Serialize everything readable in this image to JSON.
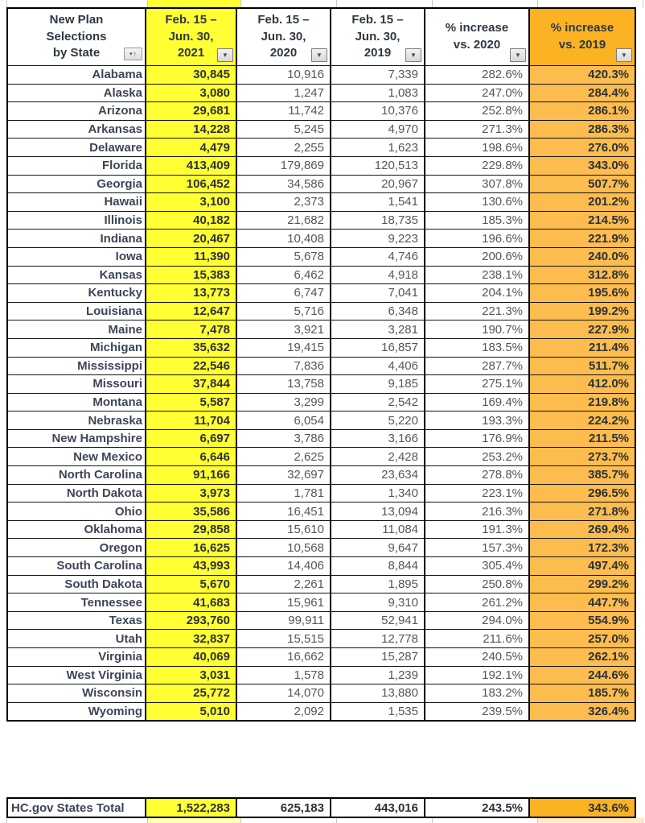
{
  "title": "New Plan Selections by State",
  "colors": {
    "highlight_yellow": "#FFFF33",
    "header_orange": "#FBB324",
    "cell_orange": "#FCBC4E",
    "grid_black": "#000000",
    "text_dark": "#2C313A"
  },
  "icons": {
    "filter_dropdown": "▼",
    "filter_small": "▾",
    "sort_ascending": "↑"
  },
  "table": {
    "header": {
      "state": "New Plan\nSelections\nby State",
      "col_2021": "Feb. 15 –\nJun. 30,\n2021",
      "col_2020": "Feb. 15 –\nJun. 30,\n2020",
      "col_2019": "Feb. 15 –\nJun. 30,\n2019",
      "pct_2020": "% increase\nvs. 2020",
      "pct_2019": "% increase\nvs. 2019"
    },
    "rows": [
      {
        "state": "Alabama",
        "v2021": "30,845",
        "v2020": "10,916",
        "v2019": "7,339",
        "pct_vs_2020": "282.6%",
        "pct_vs_2019": "420.3%"
      },
      {
        "state": "Alaska",
        "v2021": "3,080",
        "v2020": "1,247",
        "v2019": "1,083",
        "pct_vs_2020": "247.0%",
        "pct_vs_2019": "284.4%"
      },
      {
        "state": "Arizona",
        "v2021": "29,681",
        "v2020": "11,742",
        "v2019": "10,376",
        "pct_vs_2020": "252.8%",
        "pct_vs_2019": "286.1%"
      },
      {
        "state": "Arkansas",
        "v2021": "14,228",
        "v2020": "5,245",
        "v2019": "4,970",
        "pct_vs_2020": "271.3%",
        "pct_vs_2019": "286.3%"
      },
      {
        "state": "Delaware",
        "v2021": "4,479",
        "v2020": "2,255",
        "v2019": "1,623",
        "pct_vs_2020": "198.6%",
        "pct_vs_2019": "276.0%"
      },
      {
        "state": "Florida",
        "v2021": "413,409",
        "v2020": "179,869",
        "v2019": "120,513",
        "pct_vs_2020": "229.8%",
        "pct_vs_2019": "343.0%"
      },
      {
        "state": "Georgia",
        "v2021": "106,452",
        "v2020": "34,586",
        "v2019": "20,967",
        "pct_vs_2020": "307.8%",
        "pct_vs_2019": "507.7%"
      },
      {
        "state": "Hawaii",
        "v2021": "3,100",
        "v2020": "2,373",
        "v2019": "1,541",
        "pct_vs_2020": "130.6%",
        "pct_vs_2019": "201.2%"
      },
      {
        "state": "Illinois",
        "v2021": "40,182",
        "v2020": "21,682",
        "v2019": "18,735",
        "pct_vs_2020": "185.3%",
        "pct_vs_2019": "214.5%"
      },
      {
        "state": "Indiana",
        "v2021": "20,467",
        "v2020": "10,408",
        "v2019": "9,223",
        "pct_vs_2020": "196.6%",
        "pct_vs_2019": "221.9%"
      },
      {
        "state": "Iowa",
        "v2021": "11,390",
        "v2020": "5,678",
        "v2019": "4,746",
        "pct_vs_2020": "200.6%",
        "pct_vs_2019": "240.0%"
      },
      {
        "state": "Kansas",
        "v2021": "15,383",
        "v2020": "6,462",
        "v2019": "4,918",
        "pct_vs_2020": "238.1%",
        "pct_vs_2019": "312.8%"
      },
      {
        "state": "Kentucky",
        "v2021": "13,773",
        "v2020": "6,747",
        "v2019": "7,041",
        "pct_vs_2020": "204.1%",
        "pct_vs_2019": "195.6%"
      },
      {
        "state": "Louisiana",
        "v2021": "12,647",
        "v2020": "5,716",
        "v2019": "6,348",
        "pct_vs_2020": "221.3%",
        "pct_vs_2019": "199.2%"
      },
      {
        "state": "Maine",
        "v2021": "7,478",
        "v2020": "3,921",
        "v2019": "3,281",
        "pct_vs_2020": "190.7%",
        "pct_vs_2019": "227.9%"
      },
      {
        "state": "Michigan",
        "v2021": "35,632",
        "v2020": "19,415",
        "v2019": "16,857",
        "pct_vs_2020": "183.5%",
        "pct_vs_2019": "211.4%"
      },
      {
        "state": "Mississippi",
        "v2021": "22,546",
        "v2020": "7,836",
        "v2019": "4,406",
        "pct_vs_2020": "287.7%",
        "pct_vs_2019": "511.7%"
      },
      {
        "state": "Missouri",
        "v2021": "37,844",
        "v2020": "13,758",
        "v2019": "9,185",
        "pct_vs_2020": "275.1%",
        "pct_vs_2019": "412.0%"
      },
      {
        "state": "Montana",
        "v2021": "5,587",
        "v2020": "3,299",
        "v2019": "2,542",
        "pct_vs_2020": "169.4%",
        "pct_vs_2019": "219.8%"
      },
      {
        "state": "Nebraska",
        "v2021": "11,704",
        "v2020": "6,054",
        "v2019": "5,220",
        "pct_vs_2020": "193.3%",
        "pct_vs_2019": "224.2%"
      },
      {
        "state": "New Hampshire",
        "v2021": "6,697",
        "v2020": "3,786",
        "v2019": "3,166",
        "pct_vs_2020": "176.9%",
        "pct_vs_2019": "211.5%"
      },
      {
        "state": "New Mexico",
        "v2021": "6,646",
        "v2020": "2,625",
        "v2019": "2,428",
        "pct_vs_2020": "253.2%",
        "pct_vs_2019": "273.7%"
      },
      {
        "state": "North Carolina",
        "v2021": "91,166",
        "v2020": "32,697",
        "v2019": "23,634",
        "pct_vs_2020": "278.8%",
        "pct_vs_2019": "385.7%"
      },
      {
        "state": "North Dakota",
        "v2021": "3,973",
        "v2020": "1,781",
        "v2019": "1,340",
        "pct_vs_2020": "223.1%",
        "pct_vs_2019": "296.5%"
      },
      {
        "state": "Ohio",
        "v2021": "35,586",
        "v2020": "16,451",
        "v2019": "13,094",
        "pct_vs_2020": "216.3%",
        "pct_vs_2019": "271.8%"
      },
      {
        "state": "Oklahoma",
        "v2021": "29,858",
        "v2020": "15,610",
        "v2019": "11,084",
        "pct_vs_2020": "191.3%",
        "pct_vs_2019": "269.4%"
      },
      {
        "state": "Oregon",
        "v2021": "16,625",
        "v2020": "10,568",
        "v2019": "9,647",
        "pct_vs_2020": "157.3%",
        "pct_vs_2019": "172.3%"
      },
      {
        "state": "South Carolina",
        "v2021": "43,993",
        "v2020": "14,406",
        "v2019": "8,844",
        "pct_vs_2020": "305.4%",
        "pct_vs_2019": "497.4%"
      },
      {
        "state": "South Dakota",
        "v2021": "5,670",
        "v2020": "2,261",
        "v2019": "1,895",
        "pct_vs_2020": "250.8%",
        "pct_vs_2019": "299.2%"
      },
      {
        "state": "Tennessee",
        "v2021": "41,683",
        "v2020": "15,961",
        "v2019": "9,310",
        "pct_vs_2020": "261.2%",
        "pct_vs_2019": "447.7%"
      },
      {
        "state": "Texas",
        "v2021": "293,760",
        "v2020": "99,911",
        "v2019": "52,941",
        "pct_vs_2020": "294.0%",
        "pct_vs_2019": "554.9%"
      },
      {
        "state": "Utah",
        "v2021": "32,837",
        "v2020": "15,515",
        "v2019": "12,778",
        "pct_vs_2020": "211.6%",
        "pct_vs_2019": "257.0%"
      },
      {
        "state": "Virginia",
        "v2021": "40,069",
        "v2020": "16,662",
        "v2019": "15,287",
        "pct_vs_2020": "240.5%",
        "pct_vs_2019": "262.1%"
      },
      {
        "state": "West Virginia",
        "v2021": "3,031",
        "v2020": "1,578",
        "v2019": "1,239",
        "pct_vs_2020": "192.1%",
        "pct_vs_2019": "244.6%"
      },
      {
        "state": "Wisconsin",
        "v2021": "25,772",
        "v2020": "14,070",
        "v2019": "13,880",
        "pct_vs_2020": "183.2%",
        "pct_vs_2019": "185.7%"
      },
      {
        "state": "Wyoming",
        "v2021": "5,010",
        "v2020": "2,092",
        "v2019": "1,535",
        "pct_vs_2020": "239.5%",
        "pct_vs_2019": "326.4%"
      }
    ],
    "total": {
      "label": "HC.gov States Total",
      "v2021": "1,522,283",
      "v2020": "625,183",
      "v2019": "443,016",
      "pct_vs_2020": "243.5%",
      "pct_vs_2019": "343.6%"
    }
  }
}
